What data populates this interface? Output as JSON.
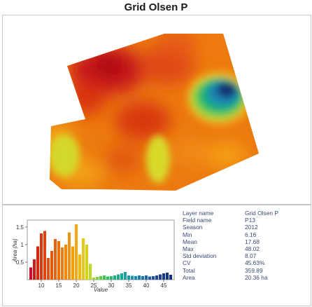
{
  "title": "Grid Olsen P",
  "stats": [
    {
      "label": "Layer name",
      "value": "Grid Olsen P"
    },
    {
      "label": "Field name",
      "value": "P13"
    },
    {
      "label": "Season",
      "value": "2012"
    },
    {
      "label": "Min",
      "value": "6.16"
    },
    {
      "label": "Mean",
      "value": "17.68"
    },
    {
      "label": "Max",
      "value": "48.02"
    },
    {
      "label": "Std deviation",
      "value": "8.07"
    },
    {
      "label": "CV",
      "value": "45.63%"
    },
    {
      "label": "Total",
      "value": "359.89"
    },
    {
      "label": "Area",
      "value": "20.36 ha"
    }
  ],
  "chart_data": {
    "type": "bar",
    "xlabel": "Value",
    "ylabel": "Area (ha)",
    "xlim": [
      6,
      48
    ],
    "ylim": [
      0,
      1.7
    ],
    "x_ticks": [
      "10",
      "15",
      "20",
      "25",
      "30",
      "35",
      "40",
      "45"
    ],
    "y_ticks": [
      "0.5",
      "1",
      "1.5"
    ],
    "x": [
      7,
      8,
      9,
      10,
      11,
      12,
      13,
      14,
      15,
      16,
      17,
      18,
      19,
      20,
      21,
      22,
      23,
      24,
      25,
      26,
      27,
      28,
      29,
      30,
      31,
      32,
      33,
      34,
      35,
      36,
      37,
      38,
      39,
      40,
      41,
      42,
      43,
      44,
      45,
      46,
      47
    ],
    "values": [
      0.35,
      0.58,
      0.95,
      1.32,
      1.39,
      0.62,
      0.82,
      1.16,
      1.1,
      0.92,
      1.0,
      1.35,
      0.95,
      1.58,
      0.72,
      1.18,
      1.0,
      0.45,
      0.06,
      0.08,
      0.1,
      0.12,
      0.09,
      0.1,
      0.12,
      0.15,
      0.18,
      0.22,
      0.12,
      0.11,
      0.1,
      0.12,
      0.1,
      0.12,
      0.09,
      0.1,
      0.12,
      0.15,
      0.18,
      0.2,
      0.14
    ],
    "colors": [
      "#c8102e",
      "#cc1a1a",
      "#d22a10",
      "#d63810",
      "#dc4410",
      "#e05010",
      "#e05a0e",
      "#e4640e",
      "#e8700e",
      "#ec7c0e",
      "#ef880e",
      "#f2920e",
      "#f39c10",
      "#f2a812",
      "#eeb614",
      "#e6c618",
      "#d6d21c",
      "#bcd822",
      "#9cd72a",
      "#7cd234",
      "#5ccc3e",
      "#40c64a",
      "#2ec05a",
      "#26b86c",
      "#20b07c",
      "#1caa8a",
      "#1aa696",
      "#1aa2a0",
      "#1a9aa8",
      "#1a90ae",
      "#1a86b0",
      "#1c7cb0",
      "#1e70ae",
      "#2064aa",
      "#2058a4",
      "#20509c",
      "#1e4894",
      "#1c428c",
      "#1a3c86",
      "#183680",
      "#16307a"
    ]
  }
}
